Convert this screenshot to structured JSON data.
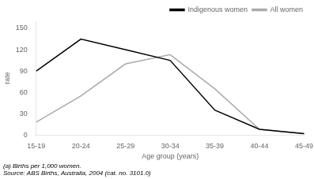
{
  "chart_data": {
    "type": "line",
    "categories": [
      "15-19",
      "20-24",
      "25-29",
      "30-34",
      "35-39",
      "40-44",
      "45-49"
    ],
    "series": [
      {
        "name": "Indigenous women",
        "color": "#000000",
        "values": [
          90,
          135,
          120,
          105,
          35,
          8,
          2
        ]
      },
      {
        "name": "All women",
        "color": "#aaaaaa",
        "values": [
          18,
          55,
          100,
          113,
          65,
          8,
          2
        ]
      }
    ],
    "xlabel": "Age group (years)",
    "ylabel": "rate",
    "ylim": [
      0,
      160
    ],
    "yticks": [
      0,
      30,
      60,
      90,
      120,
      150
    ],
    "grid": false,
    "legend": "upper right",
    "annotations": [
      "(a) Births per 1,000 women.",
      "Source: ABS Births, Australia, 2004 (cat. no. 3101.0)"
    ]
  }
}
